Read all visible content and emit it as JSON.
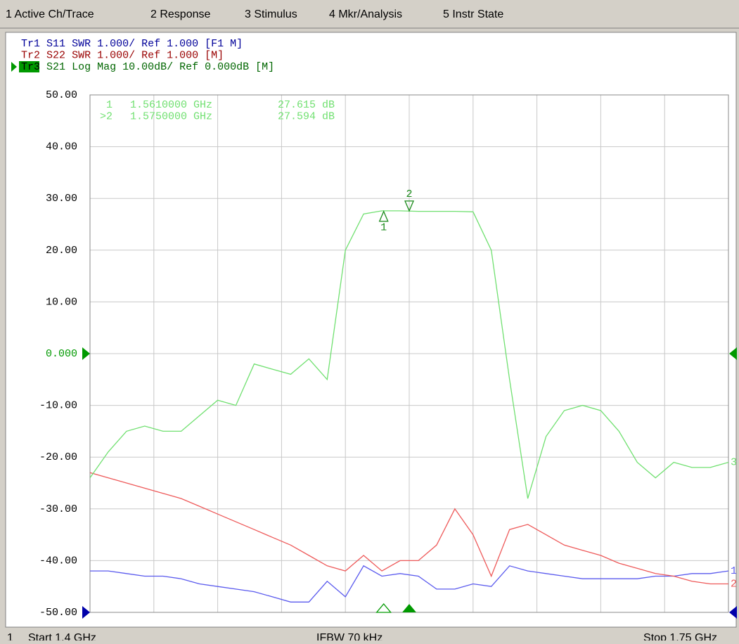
{
  "menu": [
    "1 Active Ch/Trace",
    "2 Response",
    "3 Stimulus",
    "4 Mkr/Analysis",
    "5 Instr State"
  ],
  "status_bar": {
    "channel": "1",
    "start": "Start 1.4 GHz",
    "ifbw": "IFBW 70 kHz",
    "stop": "Stop 1.75 GHz"
  },
  "chart_data": {
    "type": "line",
    "x": [
      1.4,
      1.41,
      1.42,
      1.43,
      1.44,
      1.45,
      1.46,
      1.47,
      1.48,
      1.49,
      1.5,
      1.51,
      1.52,
      1.53,
      1.54,
      1.55,
      1.56,
      1.57,
      1.58,
      1.59,
      1.6,
      1.61,
      1.62,
      1.63,
      1.64,
      1.65,
      1.66,
      1.67,
      1.68,
      1.69,
      1.7,
      1.71,
      1.72,
      1.73,
      1.74,
      1.75
    ],
    "xlim": [
      1.4,
      1.75
    ],
    "xticks": [
      1.4,
      1.435,
      1.47,
      1.505,
      1.54,
      1.575,
      1.61,
      1.645,
      1.68,
      1.715,
      1.75
    ],
    "ylim": [
      -50,
      50
    ],
    "yticks": [
      {
        "value": 50,
        "label": "50.00"
      },
      {
        "value": 40,
        "label": "40.00"
      },
      {
        "value": 30,
        "label": "30.00"
      },
      {
        "value": 20,
        "label": "20.00"
      },
      {
        "value": 10,
        "label": "10.00"
      },
      {
        "value": 0,
        "label": "0.000"
      },
      {
        "value": -10,
        "label": "-10.00"
      },
      {
        "value": -20,
        "label": "-20.00"
      },
      {
        "value": -30,
        "label": "-30.00"
      },
      {
        "value": -40,
        "label": "-40.00"
      },
      {
        "value": -50,
        "label": "-50.00"
      }
    ],
    "grid": true,
    "series": [
      {
        "name": "Tr1",
        "parameter": "S11",
        "header": "SWR 1.000/ Ref 1.000 [F1 M]",
        "end_label": "1",
        "color": "#5a5aee",
        "header_color": "#000099",
        "ref_y": -50,
        "values": [
          -42,
          -42,
          -42.5,
          -43,
          -43,
          -43.5,
          -44.5,
          -45,
          -45.5,
          -46,
          -47,
          -48,
          -48,
          -44,
          -47,
          -41,
          -43,
          -42.5,
          -43,
          -45.5,
          -45.5,
          -44.5,
          -45,
          -41,
          -42,
          -42.5,
          -43,
          -43.5,
          -43.5,
          -43.5,
          -43.5,
          -43,
          -43,
          -42.5,
          -42.5,
          -42
        ]
      },
      {
        "name": "Tr2",
        "parameter": "S22",
        "header": "SWR 1.000/ Ref 1.000 [M]",
        "end_label": "2",
        "color": "#ee5a5a",
        "header_color": "#990000",
        "values": [
          -23,
          -24,
          -25,
          -26,
          -27,
          -28,
          -29.5,
          -31,
          -32.5,
          -34,
          -35.5,
          -37,
          -39,
          -41,
          -42,
          -39,
          -42,
          -40,
          -40,
          -37,
          -30,
          -35,
          -43,
          -34,
          -33,
          -35,
          -37,
          -38,
          -39,
          -40.5,
          -41.5,
          -42.5,
          -43,
          -44,
          -44.5,
          -44.5
        ]
      },
      {
        "name": "Tr3",
        "parameter": "S21",
        "header": "Log Mag 10.00dB/ Ref 0.000dB [M]",
        "end_label": "3",
        "color": "#70e070",
        "header_color": "#006600",
        "ref_y": 0,
        "active": true,
        "values": [
          -24,
          -19,
          -15,
          -14,
          -15,
          -15,
          -12,
          -9,
          -10,
          -2,
          -3,
          -4,
          -1,
          -5,
          20,
          27,
          27.6,
          27.6,
          27.5,
          27.5,
          27.5,
          27.4,
          20,
          -5,
          -28,
          -16,
          -11,
          -10,
          -11,
          -15,
          -21,
          -24,
          -21,
          -22,
          -22,
          -21
        ]
      }
    ],
    "markers": [
      {
        "name": "1",
        "readout": "1",
        "x": 1.561,
        "y": 27.615,
        "x_label": "1.5610000 GHz",
        "y_label": "27.615 dB"
      },
      {
        "name": "2",
        "readout": ">2",
        "x": 1.575,
        "y": 27.594,
        "x_label": "1.5750000 GHz",
        "y_label": "27.594 dB",
        "active": true
      }
    ]
  }
}
